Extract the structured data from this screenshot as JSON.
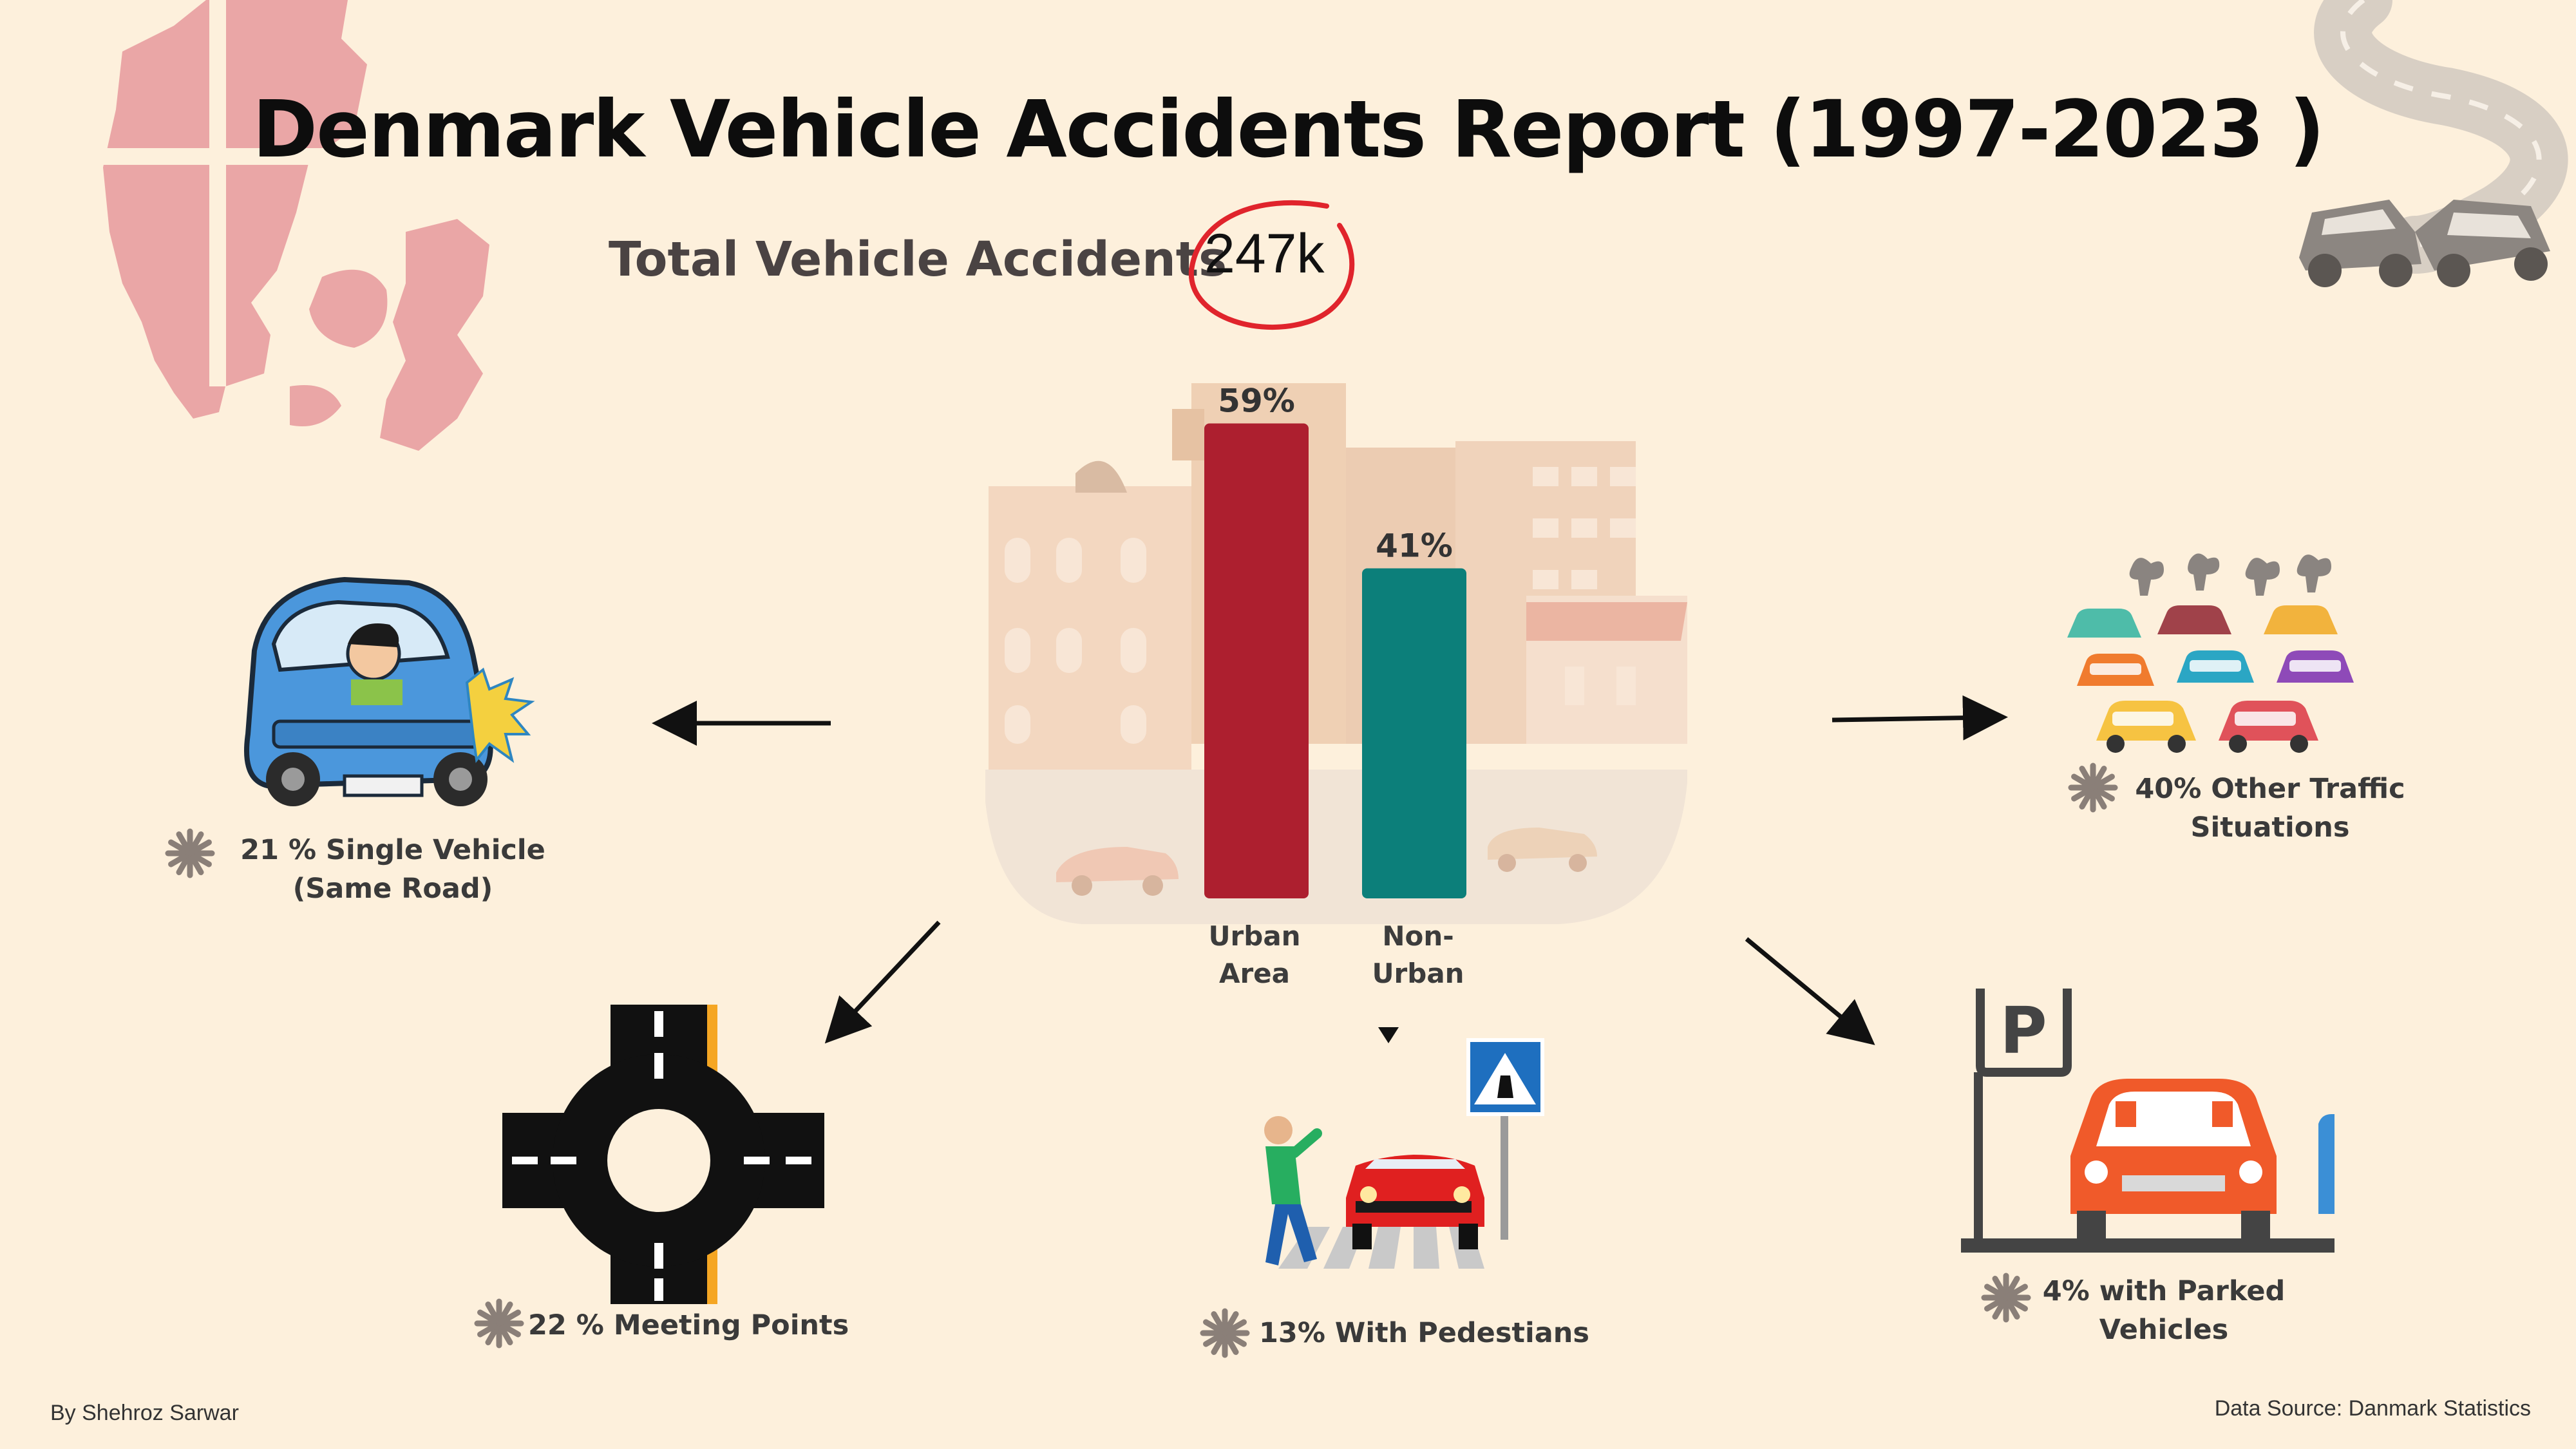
{
  "header": {
    "title": "Denmark Vehicle Accidents Report (1997-2023 )",
    "total_label": "Total Vehicle Accidents",
    "total_value": "247k"
  },
  "chart_data": {
    "type": "bar",
    "categories": [
      "Urban Area",
      "Non-Urban"
    ],
    "category_lines": [
      [
        "Urban",
        "Area"
      ],
      [
        "Non-",
        "Urban"
      ]
    ],
    "values": [
      59,
      41
    ],
    "value_labels": [
      "59%",
      "41%"
    ],
    "unit": "%",
    "ylim": [
      0,
      60
    ],
    "colors": [
      "#ad1f2f",
      "#0c7f7a"
    ],
    "grid": false
  },
  "breakdown": [
    {
      "id": "single",
      "text_lines": [
        "21 % Single Vehicle",
        "(Same Road)"
      ],
      "value": 21
    },
    {
      "id": "meeting",
      "text_lines": [
        "22 % Meeting Points"
      ],
      "value": 22
    },
    {
      "id": "pedestrians",
      "text_lines": [
        "13% With Pedestians"
      ],
      "value": 13
    },
    {
      "id": "parked",
      "text_lines": [
        "4% with Parked",
        "Vehicles"
      ],
      "value": 4
    },
    {
      "id": "other",
      "text_lines": [
        "40% Other Traffic",
        "Situations"
      ],
      "value": 40
    }
  ],
  "sign": {
    "parking_letter": "P"
  },
  "footer": {
    "author": "By Shehroz Sarwar",
    "source": "Data Source: Danmark Statistics"
  },
  "icons": [
    "denmark-map-icon",
    "crash-road-icon",
    "car-crash-icon",
    "roundabout-icon",
    "pedestrian-crossing-icon",
    "parking-icon",
    "traffic-jam-icon",
    "city-buildings-icon",
    "asterisk-icon"
  ]
}
